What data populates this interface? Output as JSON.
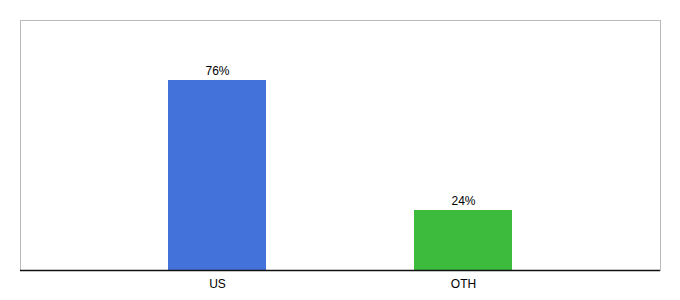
{
  "chart_data": {
    "type": "bar",
    "categories": [
      "US",
      "OTH"
    ],
    "values": [
      76,
      24
    ],
    "value_labels": [
      "76%",
      "24%"
    ],
    "colors": [
      "#4472db",
      "#3dbb3d"
    ],
    "ylim": [
      0,
      100
    ],
    "data_labels": true,
    "tick_labels": "x",
    "grid": false
  }
}
